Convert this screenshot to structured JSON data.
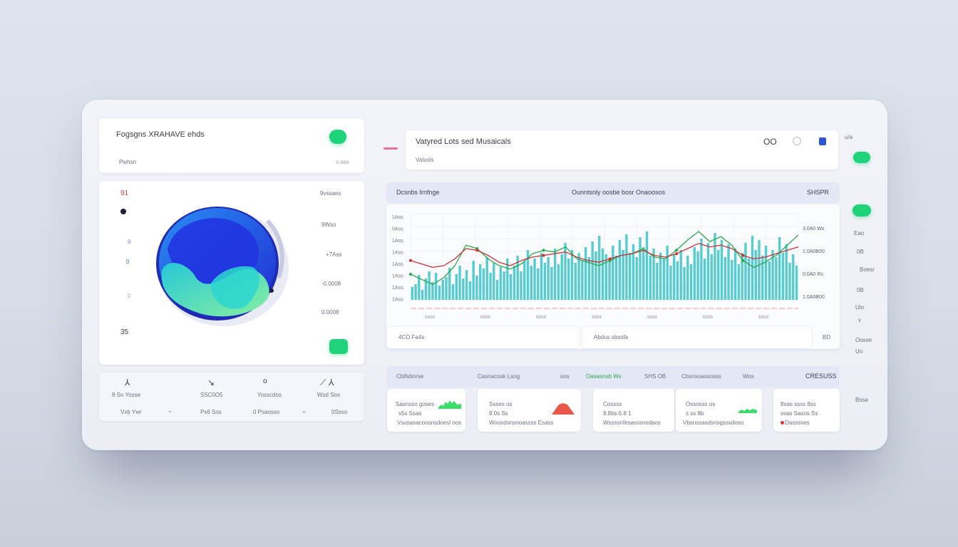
{
  "colors": {
    "accent": "#1fd37a",
    "bar": "#37c3c8",
    "line_green": "#2aa84a",
    "line_red": "#c83333",
    "blue": "#2c55d8",
    "pink": "#f06aa0"
  },
  "top_left": {
    "title": "Fogsgns XRAHAVE ehds",
    "subtitle": "Pwhsn",
    "meta": "s.ass"
  },
  "globe_card": {
    "corner_label": "91",
    "bottom_label": "35",
    "header_right": "9vssaes",
    "values": [
      "9Wso",
      "+7Ass",
      "-0.0008",
      "0.0008",
      "0.0008"
    ],
    "tags": [
      "9",
      "0",
      "0"
    ]
  },
  "stats_strip": {
    "items": [
      {
        "icon": "person-icon",
        "label": "8 Sn Yosse",
        "value": "Vxb Ywr"
      },
      {
        "icon": "arrow-icon",
        "label": "SSC0O5",
        "value": "Ps6 Sos"
      },
      {
        "icon": "ring-icon",
        "label": "Yosscdos",
        "value": "0 Psaosso"
      },
      {
        "icon": "link-icon",
        "label": "Wsd Sos",
        "value": "0Ssso"
      }
    ]
  },
  "header_card": {
    "title": "Vatyred Lots sed Musaicals",
    "subtitle": "Vatusls",
    "badge": "OO",
    "icons": [
      "search-icon",
      "info-icon"
    ]
  },
  "chart": {
    "toolbar_left": "Dcsnbs Irnfnge",
    "toolbar_mid": "Ounntsnly oosbe bosr Onaoosos",
    "toolbar_right": "SHSPR",
    "footer_left": "4CO Fa4s",
    "footer_mid": "Abdus sbssfa",
    "footer_right": "BD"
  },
  "chart_data": {
    "type": "bar",
    "y_ticks": [
      "1Ass",
      "0Ass",
      "1Ass",
      "1Ass",
      "1Ass",
      "1Ass",
      "1Ass",
      "1Ass"
    ],
    "right_labels": [
      "3.0A0 Ws",
      "1.0A0B00",
      "0.0A0 Rs",
      "1.0A0B00"
    ],
    "x_labels": [
      "ssss",
      "ssss",
      "ssss",
      "ssss",
      "ssss",
      "ssss",
      "ssss"
    ],
    "values": [
      18,
      22,
      35,
      14,
      30,
      40,
      25,
      38,
      20,
      28,
      32,
      45,
      22,
      36,
      48,
      30,
      42,
      26,
      55,
      34,
      50,
      44,
      60,
      38,
      52,
      28,
      46,
      40,
      58,
      36,
      48,
      62,
      40,
      54,
      70,
      48,
      58,
      44,
      66,
      52,
      60,
      46,
      72,
      50,
      64,
      80,
      58,
      70,
      52,
      66,
      56,
      74,
      60,
      82,
      68,
      90,
      72,
      64,
      58,
      76,
      62,
      84,
      70,
      92,
      66,
      78,
      60,
      88,
      74,
      96,
      62,
      72,
      52,
      66,
      58,
      76,
      48,
      64,
      54,
      70,
      46,
      62,
      50,
      74,
      68,
      86,
      58,
      80,
      64,
      94,
      70,
      84,
      60,
      78,
      56,
      72,
      50,
      66,
      80,
      58,
      90,
      70,
      84,
      62,
      76,
      54,
      70,
      60,
      88,
      66,
      78,
      52,
      64,
      48
    ],
    "series": [
      {
        "values": [
          30,
          24,
          18,
          26,
          40,
          64,
          60,
          48,
          40,
          36,
          42,
          54,
          58,
          56,
          62,
          48,
          44,
          40,
          46,
          52,
          54,
          60,
          50,
          48,
          58,
          70,
          80,
          68,
          74,
          64,
          46,
          38,
          44,
          52,
          64,
          76
        ],
        "color": "#2aa84a"
      },
      {
        "values": [
          46,
          42,
          38,
          40,
          48,
          60,
          58,
          52,
          44,
          40,
          46,
          50,
          52,
          54,
          56,
          50,
          46,
          44,
          48,
          52,
          54,
          58,
          52,
          50,
          54,
          60,
          66,
          62,
          64,
          60,
          52,
          48,
          50,
          54,
          58,
          62
        ],
        "color": "#c83333"
      }
    ]
  },
  "bottom_band": {
    "labels": [
      "Cblfsbnrse",
      "Casnacosk Lsng",
      "oos",
      "Oasasnsb Ws",
      "SHS OB",
      "Cbsnsoassosss",
      "Wos",
      "CRESUSS"
    ]
  },
  "mini_cards": [
    {
      "l1": "Sasnsso goses",
      "l2": "s5s Ssas",
      "l3": "Vsusasacoosnsdnesl oos",
      "spark": "green"
    },
    {
      "l1": "Ssses os",
      "l2": "8.0s Ss",
      "l3": "Woosdsnsnoassss Esass",
      "spark": "red"
    },
    {
      "l1": "Cossss",
      "l2": "8.8bs 6.8 1",
      "l3": "Wssssnfesasssnsdaos",
      "spark": "none"
    },
    {
      "l1": "Ossosss os",
      "l2": "s.ss 8b",
      "l3": "Vbsnssasdsnsgsssdoso",
      "spark": "green"
    },
    {
      "l1": "8sas ssss 8ss",
      "l2": "ssas Sasos Ss",
      "l3": "Dasssses",
      "spark": "dot"
    }
  ],
  "right_rail": {
    "items": [
      "Eao",
      "0B",
      "Boesr",
      "0B",
      "Uio",
      "v",
      "Oosse",
      "Uo",
      "Bssa"
    ],
    "top": "u/a"
  }
}
